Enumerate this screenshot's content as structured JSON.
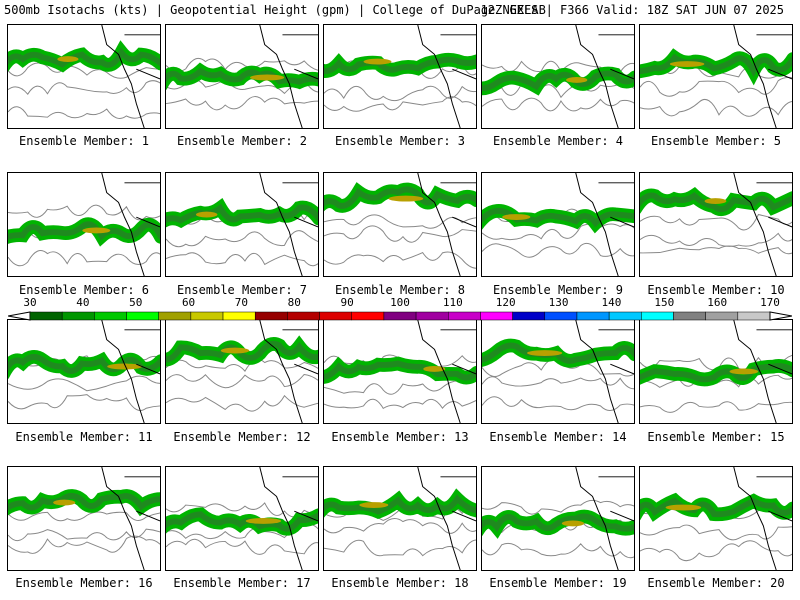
{
  "header": {
    "left": "500mb Isotachs (kts) | Geopotential Height (gpm) | College of DuPage NEXLAB",
    "right": "12Z GEFS | F366 Valid: 18Z SAT JUN 07 2025"
  },
  "members": [
    "Ensemble Member: 1",
    "Ensemble Member: 2",
    "Ensemble Member: 3",
    "Ensemble Member: 4",
    "Ensemble Member: 5",
    "Ensemble Member: 6",
    "Ensemble Member: 7",
    "Ensemble Member: 8",
    "Ensemble Member: 9",
    "Ensemble Member: 10",
    "Ensemble Member: 11",
    "Ensemble Member: 12",
    "Ensemble Member: 13",
    "Ensemble Member: 14",
    "Ensemble Member: 15",
    "Ensemble Member: 16",
    "Ensemble Member: 17",
    "Ensemble Member: 18",
    "Ensemble Member: 19",
    "Ensemble Member: 20"
  ],
  "colorbar": {
    "ticks": [
      "30",
      "40",
      "50",
      "60",
      "70",
      "80",
      "90",
      "100",
      "110",
      "120",
      "130",
      "140",
      "150",
      "160",
      "170"
    ],
    "colors": [
      "#006400",
      "#009600",
      "#00c800",
      "#00ff00",
      "#a0a000",
      "#c8c800",
      "#ffff00",
      "#960000",
      "#b40000",
      "#dc0000",
      "#ff0000",
      "#800080",
      "#a000a0",
      "#c800c8",
      "#ff00ff",
      "#0000c8",
      "#0050ff",
      "#0096ff",
      "#00c8ff",
      "#00ffff",
      "#808080",
      "#a0a0a0",
      "#c8c8c8"
    ]
  }
}
